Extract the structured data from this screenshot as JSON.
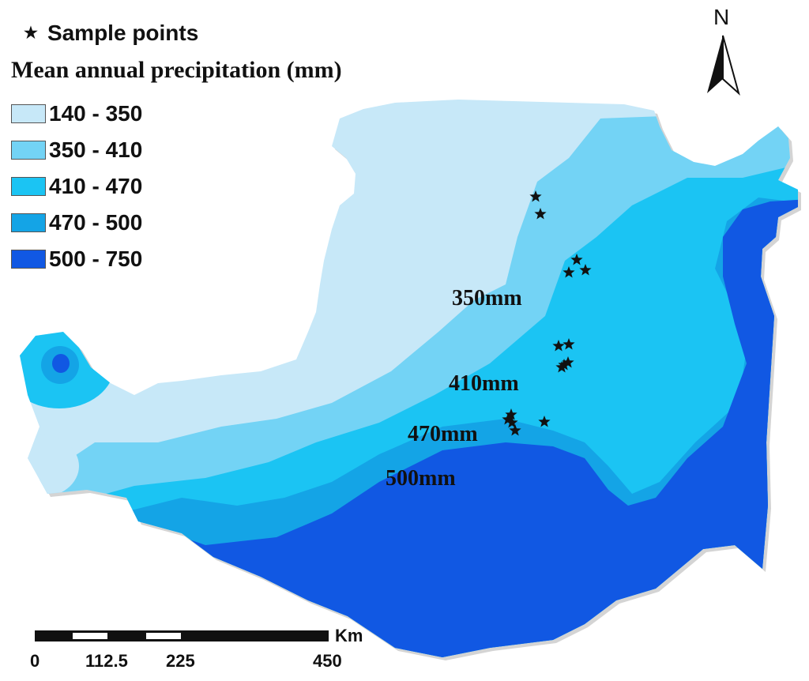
{
  "legend": {
    "sample_points_label": "Sample points",
    "title": "Mean annual precipitation (mm)",
    "classes": [
      {
        "label": "140 - 350",
        "color": "#c7e8f8"
      },
      {
        "label": "350 - 410",
        "color": "#73d3f5"
      },
      {
        "label": "410 - 470",
        "color": "#1bc4f3"
      },
      {
        "label": "470 - 500",
        "color": "#14a4e6"
      },
      {
        "label": "500 - 750",
        "color": "#1158e3"
      }
    ]
  },
  "isolines": {
    "l350": "350mm",
    "l410": "410mm",
    "l470": "470mm",
    "l500": "500mm"
  },
  "north_arrow": {
    "letter": "N"
  },
  "scale_bar": {
    "unit": "Km",
    "ticks": {
      "t0": "0",
      "t1": "112.5",
      "t2": "225",
      "t3": "450"
    }
  },
  "colors": {
    "star": "#111111",
    "boundary_shadow": "#cfcfcf"
  }
}
